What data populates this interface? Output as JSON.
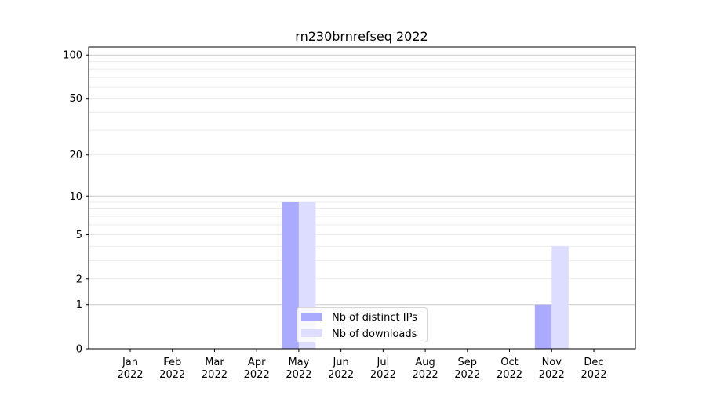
{
  "chart_data": {
    "type": "bar",
    "title": "rn230brnrefseq 2022",
    "xlabel": "",
    "ylabel": "",
    "y_scale": "log(1+y)",
    "ylim": [
      0,
      120
    ],
    "y_ticks": [
      0,
      1,
      2,
      5,
      10,
      20,
      50,
      100
    ],
    "y_tick_labels": [
      "0",
      "1",
      "2",
      "5",
      "10",
      "20",
      "50",
      "100"
    ],
    "grid": true,
    "legend_position": "lower-center",
    "categories": [
      "Jan\n2022",
      "Feb\n2022",
      "Mar\n2022",
      "Apr\n2022",
      "May\n2022",
      "Jun\n2022",
      "Jul\n2022",
      "Aug\n2022",
      "Sep\n2022",
      "Oct\n2022",
      "Nov\n2022",
      "Dec\n2022"
    ],
    "series": [
      {
        "name": "Nb of distinct IPs",
        "color": "#aaaaff",
        "values": [
          0,
          0,
          0,
          0,
          9,
          0,
          0,
          0,
          0,
          0,
          1,
          0
        ]
      },
      {
        "name": "Nb of downloads",
        "color": "#ddddff",
        "values": [
          0,
          0,
          0,
          0,
          9,
          0,
          0,
          0,
          0,
          0,
          4,
          0
        ]
      }
    ]
  }
}
